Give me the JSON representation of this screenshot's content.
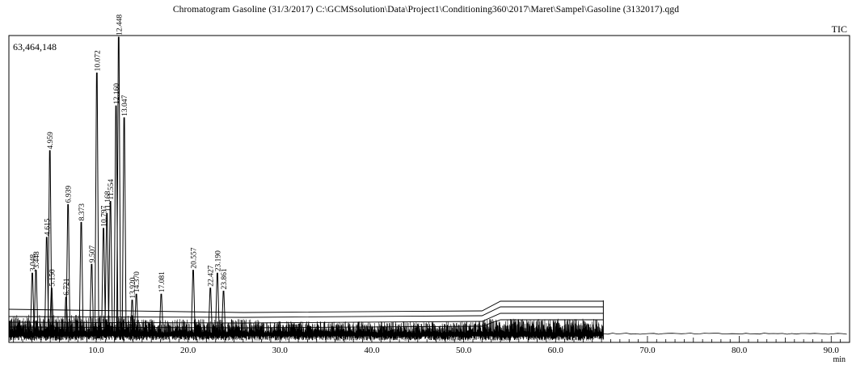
{
  "chart_data": {
    "type": "line",
    "title": "Chromatogram Gasoline (31/3/2017) C:\\GCMSsolution\\Data\\Project1\\Conditioning360\\2017\\Maret\\Sampel\\Gasoline (3132017).qgd",
    "series_label": "TIC",
    "y_max_label": "63,464,148",
    "y_max": 63464148,
    "xlabel": "min",
    "xlim": [
      0.5,
      92.0
    ],
    "x_ticks": [
      10.0,
      20.0,
      30.0,
      40.0,
      50.0,
      60.0,
      70.0,
      80.0,
      90.0
    ],
    "x_tick_labels": [
      "10.0",
      "20.0",
      "30.0",
      "40.0",
      "50.0",
      "60.0",
      "70.0",
      "80.0",
      "90.0"
    ],
    "grid": false,
    "peaks": [
      {
        "rt": 3.048,
        "label": "3.048",
        "height": 0.21
      },
      {
        "rt": 3.448,
        "label": "3.448",
        "height": 0.22
      },
      {
        "rt": 4.615,
        "label": "4.615",
        "height": 0.33
      },
      {
        "rt": 4.959,
        "label": "4.959",
        "height": 0.62
      },
      {
        "rt": 5.15,
        "label": "5.150",
        "height": 0.16
      },
      {
        "rt": 6.721,
        "label": "6.721",
        "height": 0.13
      },
      {
        "rt": 6.939,
        "label": "6.939",
        "height": 0.44
      },
      {
        "rt": 8.373,
        "label": "8.373",
        "height": 0.38
      },
      {
        "rt": 9.507,
        "label": "9.507",
        "height": 0.24
      },
      {
        "rt": 10.072,
        "label": "10.072",
        "height": 0.88
      },
      {
        "rt": 10.797,
        "label": "10.797",
        "height": 0.36
      },
      {
        "rt": 11.168,
        "label": "11.168",
        "height": 0.41
      },
      {
        "rt": 11.554,
        "label": "11.554",
        "height": 0.45
      },
      {
        "rt": 12.16,
        "label": "12.160",
        "height": 0.77
      },
      {
        "rt": 12.448,
        "label": "12.448",
        "height": 1.0
      },
      {
        "rt": 13.047,
        "label": "13.047",
        "height": 0.73
      },
      {
        "rt": 13.92,
        "label": "13.920",
        "height": 0.12
      },
      {
        "rt": 14.37,
        "label": "14.370",
        "height": 0.14
      },
      {
        "rt": 17.081,
        "label": "17.081",
        "height": 0.14
      },
      {
        "rt": 20.557,
        "label": "20.557",
        "height": 0.22
      },
      {
        "rt": 22.427,
        "label": "22.427",
        "height": 0.16
      },
      {
        "rt": 23.19,
        "label": "23.190",
        "height": 0.21
      },
      {
        "rt": 23.861,
        "label": "23.861",
        "height": 0.15
      }
    ]
  }
}
